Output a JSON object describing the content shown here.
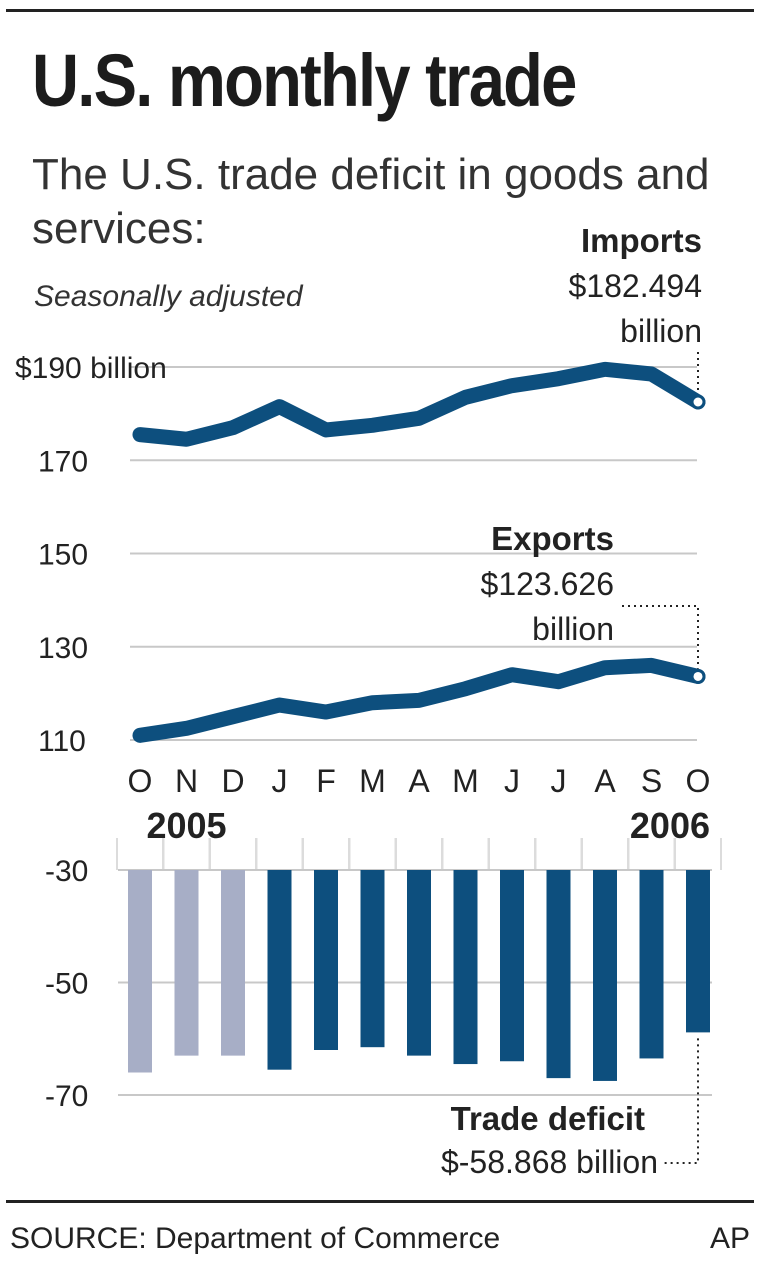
{
  "header": {
    "title": "U.S. monthly trade",
    "subtitle": "The U.S. trade deficit in goods and services:",
    "note": "Seasonally adjusted"
  },
  "footer": {
    "source": "SOURCE: Department of Commerce",
    "credit": "AP"
  },
  "colors": {
    "series": "#0d4f7e",
    "bar_2005": "#a7aec6",
    "bar_2006": "#0d4f7e",
    "grid": "#c8c8c8",
    "text": "#222222"
  },
  "chart_data": [
    {
      "type": "line",
      "categories": [
        "O",
        "N",
        "D",
        "J",
        "F",
        "M",
        "A",
        "M",
        "J",
        "J",
        "A",
        "S",
        "O"
      ],
      "year_labels": [
        "2005",
        "2006"
      ],
      "ylim": [
        110,
        190
      ],
      "yticks": [
        {
          "value": 190,
          "label": "$190 billion"
        },
        {
          "value": 170,
          "label": "170"
        },
        {
          "value": 150,
          "label": "150"
        },
        {
          "value": 130,
          "label": "130"
        },
        {
          "value": 110,
          "label": "110"
        }
      ],
      "series": [
        {
          "name": "Imports",
          "values": [
            175.5,
            174.5,
            177,
            181.5,
            176.5,
            177.5,
            179,
            183.5,
            186,
            187.5,
            189.5,
            188.5,
            182.494
          ],
          "label_lines": [
            "Imports",
            "$182.494",
            "billion"
          ]
        },
        {
          "name": "Exports",
          "values": [
            111,
            112.5,
            115,
            117.5,
            116,
            118,
            118.5,
            121,
            124,
            122.5,
            125.5,
            126,
            123.626
          ],
          "label_lines": [
            "Exports",
            "$123.626",
            "billion"
          ]
        }
      ]
    },
    {
      "type": "bar",
      "categories": [
        "O",
        "N",
        "D",
        "J",
        "F",
        "M",
        "A",
        "M",
        "J",
        "J",
        "A",
        "S",
        "O"
      ],
      "years": [
        "2005",
        "2005",
        "2005",
        "2006",
        "2006",
        "2006",
        "2006",
        "2006",
        "2006",
        "2006",
        "2006",
        "2006",
        "2006"
      ],
      "values": [
        -66,
        -63,
        -63,
        -65.5,
        -62,
        -61.5,
        -63,
        -64.5,
        -64,
        -67,
        -67.5,
        -63.5,
        -58.868
      ],
      "ylim": [
        -70,
        -30
      ],
      "yticks": [
        {
          "value": -30,
          "label": "-30"
        },
        {
          "value": -50,
          "label": "-50"
        },
        {
          "value": -70,
          "label": "-70"
        }
      ],
      "label_lines": [
        "Trade deficit",
        "$-58.868 billion"
      ]
    }
  ]
}
